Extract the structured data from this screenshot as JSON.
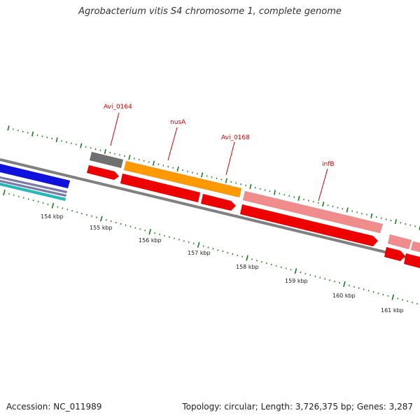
{
  "header": {
    "title": "Agrobacterium vitis S4 chromosome 1, complete genome"
  },
  "footer": {
    "accession": "Accession: NC_011989",
    "summary": "Topology: circular; Length: 3,726,375 bp; Genes: 3,287"
  },
  "colors": {
    "backbone": "#808080",
    "tick": "#1b7a1b",
    "label": "#cc0000",
    "gene_red": "#ee0000",
    "gene_orange": "#ff9900",
    "gene_gray": "#707070",
    "gene_pink": "#f08c8c",
    "gene_blue": "#1111dd",
    "gene_cyan": "#22bbbb",
    "gene_violet": "#7a7aaa"
  },
  "gene_labels": [
    {
      "id": "avi0164",
      "text": "Avi_0164"
    },
    {
      "id": "nusa",
      "text": "nusA"
    },
    {
      "id": "avi0168",
      "text": "Avi_0168"
    },
    {
      "id": "infb",
      "text": "infB"
    }
  ],
  "scale_labels": [
    "154 kbp",
    "155 kbp",
    "156 kbp",
    "157 kbp",
    "158 kbp",
    "159 kbp",
    "160 kbp",
    "161 kbp"
  ]
}
